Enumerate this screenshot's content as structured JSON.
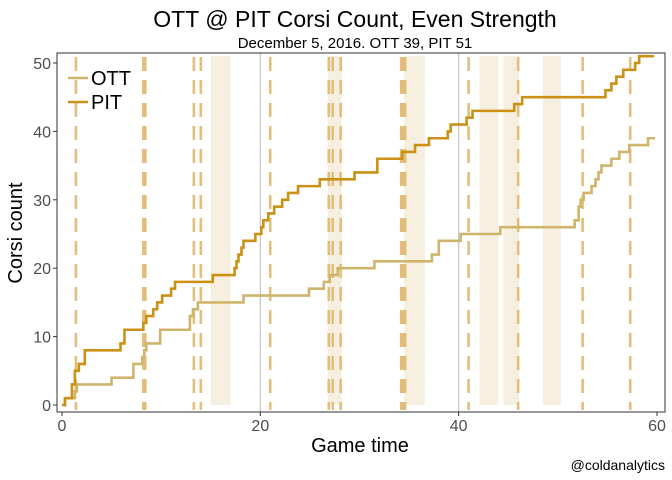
{
  "chart_data": {
    "type": "line",
    "title": "OTT @ PIT Corsi Count, Even Strength",
    "subtitle": "December 5, 2016. OTT 39, PIT 51",
    "xlabel": "Game time",
    "ylabel": "Corsi count",
    "caption": "@coldanalytics",
    "xlim": [
      0,
      60
    ],
    "ylim": [
      0,
      51
    ],
    "xticks": [
      0,
      20,
      40,
      60
    ],
    "yticks": [
      0,
      10,
      20,
      30,
      40,
      50
    ],
    "grid": true,
    "legend_position": "top-left",
    "colors": {
      "OTT": "#cfb56b",
      "PIT": "#cc9114",
      "goal_line": "#dfb970",
      "band": "#f6efe0",
      "period_line": "#c8c8c8"
    },
    "series": [
      {
        "name": "OTT",
        "x": [
          0,
          0.3,
          1.3,
          1.5,
          1.7,
          5.0,
          7.2,
          8.1,
          8.3,
          8.5,
          9.9,
          12.9,
          13.2,
          13.7,
          14.0,
          15.2,
          18.3,
          24.9,
          26.4,
          27.0,
          27.4,
          27.8,
          31.5,
          37.3,
          38.0,
          40.2,
          40.6,
          44.2,
          45.2,
          51.7,
          52.1,
          52.3,
          52.6,
          53.4,
          53.8,
          54.1,
          54.4,
          55.0,
          55.4,
          56.2,
          57.2,
          57.4,
          59.1,
          59.8
        ],
        "y": [
          0,
          1,
          2,
          3,
          3,
          4,
          6,
          7,
          8,
          9,
          11,
          13,
          14,
          15,
          15,
          15,
          16,
          17,
          18,
          19,
          19,
          20,
          21,
          22,
          24,
          25,
          25,
          26,
          26,
          27,
          29,
          30,
          31,
          32,
          33,
          34,
          35,
          35,
          36,
          37,
          38,
          38,
          39,
          39
        ]
      },
      {
        "name": "PIT",
        "x": [
          0,
          0.3,
          1.0,
          1.3,
          1.7,
          2.3,
          5.9,
          6.3,
          8.2,
          8.5,
          9.2,
          9.6,
          10.1,
          11.0,
          11.4,
          12.3,
          13.1,
          15.2,
          17.4,
          17.6,
          17.8,
          17.9,
          17.9,
          18.1,
          18.3,
          19.5,
          20.1,
          20.2,
          20.3,
          20.8,
          21.4,
          22.2,
          22.8,
          23.8,
          24.5,
          26.0,
          26.7,
          29.5,
          31.8,
          32.6,
          34.3,
          35.6,
          37.0,
          37.4,
          38.9,
          39.2,
          40.8,
          41.4,
          45.6,
          46.4,
          48.8,
          54.8,
          55.4,
          55.9,
          56.6,
          57.8,
          58.2,
          58.6,
          59.7
        ],
        "y": [
          0,
          1,
          3,
          5,
          6,
          8,
          9,
          11,
          12,
          13,
          14,
          15,
          16,
          17,
          18,
          18,
          18,
          19,
          20,
          21,
          22,
          22,
          22,
          23,
          24,
          25,
          26,
          26,
          27,
          28,
          29,
          30,
          31,
          32,
          32,
          33,
          33,
          34,
          36,
          36,
          37,
          38,
          39,
          39,
          40,
          41,
          42,
          43,
          44,
          45,
          45,
          46,
          47,
          48,
          49,
          50,
          51,
          51,
          51
        ]
      }
    ],
    "goal_lines": [
      1.4,
      8.2,
      8.4,
      13.3,
      14.0,
      21.0,
      26.9,
      27.3,
      28.1,
      34.2,
      34.4,
      34.6,
      41.0,
      46.0,
      52.5,
      57.3
    ],
    "shaded_bands": [
      [
        15.0,
        17.0
      ],
      [
        26.8,
        28.2
      ],
      [
        34.5,
        36.6
      ],
      [
        42.1,
        44.0
      ],
      [
        44.5,
        46.1
      ],
      [
        48.5,
        50.3
      ]
    ],
    "period_lines": [
      20,
      40
    ]
  }
}
